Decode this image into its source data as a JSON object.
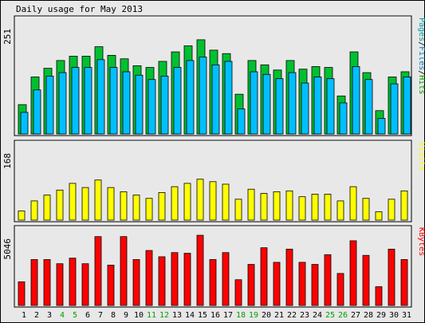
{
  "title": "Daily usage for May 2013",
  "chart_data": [
    {
      "type": "bar",
      "panel": "pages-files-hits",
      "categories": [
        "1",
        "2",
        "3",
        "4",
        "5",
        "6",
        "7",
        "8",
        "9",
        "10",
        "11",
        "12",
        "13",
        "14",
        "15",
        "16",
        "17",
        "18",
        "19",
        "20",
        "21",
        "22",
        "23",
        "24",
        "25",
        "26",
        "27",
        "28",
        "29",
        "30",
        "31"
      ],
      "weekend_days": [
        "4",
        "5",
        "11",
        "12",
        "18",
        "19",
        "25",
        "26"
      ],
      "ymax_label": "251",
      "legend": [
        "Pages",
        "Files",
        "Hits"
      ],
      "legend_colors": {
        "Pages": "#00A0A0",
        "Files": "#0080C0",
        "Hits": "#00A000"
      },
      "series": [
        {
          "name": "Hits",
          "color": "#00C030",
          "values": [
            68,
            132,
            152,
            170,
            180,
            180,
            202,
            182,
            174,
            158,
            154,
            168,
            190,
            204,
            218,
            194,
            186,
            92,
            170,
            160,
            148,
            170,
            150,
            156,
            154,
            88,
            190,
            142,
            54,
            132,
            144
          ]
        },
        {
          "name": "Files",
          "color": "#00BFFF",
          "values": [
            50,
            102,
            134,
            142,
            154,
            154,
            172,
            154,
            144,
            136,
            126,
            134,
            154,
            170,
            178,
            160,
            168,
            58,
            144,
            138,
            128,
            142,
            118,
            132,
            128,
            72,
            156,
            126,
            36,
            116,
            132
          ]
        },
        {
          "name": "Pages",
          "color": "#00BFFF",
          "values": [
            0,
            0,
            0,
            0,
            0,
            0,
            0,
            0,
            0,
            0,
            0,
            0,
            0,
            0,
            0,
            0,
            0,
            0,
            0,
            0,
            0,
            0,
            0,
            0,
            0,
            0,
            0,
            0,
            0,
            0,
            0
          ]
        }
      ],
      "ylim": [
        0,
        251
      ]
    },
    {
      "type": "bar",
      "panel": "visits",
      "categories": [
        "1",
        "2",
        "3",
        "4",
        "5",
        "6",
        "7",
        "8",
        "9",
        "10",
        "11",
        "12",
        "13",
        "14",
        "15",
        "16",
        "17",
        "18",
        "19",
        "20",
        "21",
        "22",
        "23",
        "24",
        "25",
        "26",
        "27",
        "28",
        "29",
        "30",
        "31"
      ],
      "ymax_label": "168",
      "legend": [
        "Visits"
      ],
      "legend_colors": {
        "Visits": "#FFFF00"
      },
      "series": [
        {
          "name": "Visits",
          "color": "#FFFF00",
          "values": [
            22,
            46,
            60,
            72,
            88,
            78,
            96,
            78,
            68,
            60,
            52,
            66,
            80,
            88,
            98,
            92,
            86,
            50,
            74,
            64,
            68,
            70,
            56,
            62,
            62,
            46,
            80,
            52,
            20,
            50,
            70
          ]
        }
      ],
      "ylim": [
        0,
        168
      ]
    },
    {
      "type": "bar",
      "panel": "kbytes",
      "categories": [
        "1",
        "2",
        "3",
        "4",
        "5",
        "6",
        "7",
        "8",
        "9",
        "10",
        "11",
        "12",
        "13",
        "14",
        "15",
        "16",
        "17",
        "18",
        "19",
        "20",
        "21",
        "22",
        "23",
        "24",
        "25",
        "26",
        "27",
        "28",
        "29",
        "30",
        "31"
      ],
      "ymax_label": "5046",
      "legend": [
        "KBytes"
      ],
      "legend_colors": {
        "KBytes": "#FF0000"
      },
      "series": [
        {
          "name": "KBytes",
          "color": "#FF0000",
          "values": [
            1700,
            3300,
            3300,
            3000,
            3400,
            3000,
            4950,
            2900,
            4950,
            3300,
            3950,
            3500,
            3800,
            3750,
            5046,
            3300,
            3800,
            1850,
            2950,
            4150,
            3100,
            4050,
            3100,
            2950,
            3650,
            2300,
            4650,
            3600,
            1350,
            4050,
            3300
          ]
        }
      ],
      "ylim": [
        0,
        5046
      ]
    }
  ]
}
